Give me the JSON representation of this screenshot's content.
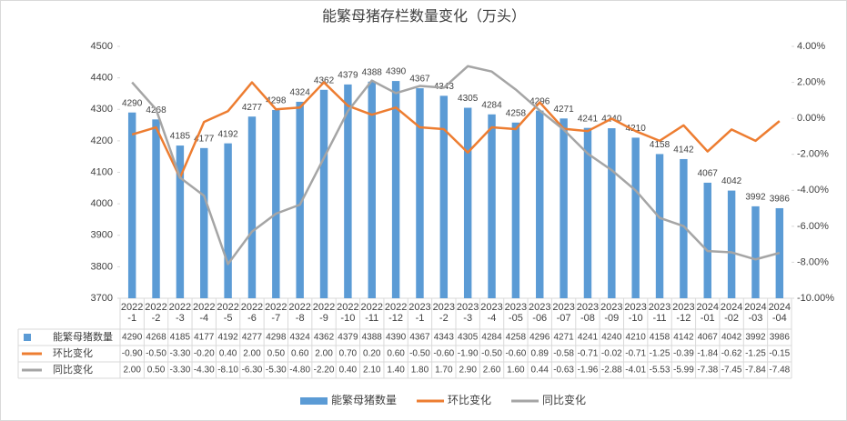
{
  "chart_data": {
    "type": "bar-line",
    "title": "能繁母猪存栏数量变化（万头）",
    "categories": [
      "2022-1",
      "2022-2",
      "2022-3",
      "2022-4",
      "2022-5",
      "2022-6",
      "2022-7",
      "2022-8",
      "2022-9",
      "2022-10",
      "2022-11",
      "2022-12",
      "2023-1",
      "2023-2",
      "2023-3",
      "2023-4",
      "2023-05",
      "2023-06",
      "2023-07",
      "2023-08",
      "2023-09",
      "2023-10",
      "2023-11",
      "2023-12",
      "2024-01",
      "2024-02",
      "2024-03",
      "2024-04"
    ],
    "series": [
      {
        "name": "能繁母猪数量",
        "type": "bar",
        "color": "#5b9bd5",
        "values": [
          4290,
          4268,
          4185,
          4177,
          4192,
          4277,
          4298,
          4324,
          4362,
          4379,
          4388,
          4390,
          4367,
          4343,
          4305,
          4284,
          4258,
          4296,
          4271,
          4241,
          4240,
          4210,
          4158,
          4142,
          4067,
          4042,
          3992,
          3986
        ]
      },
      {
        "name": "环比变化",
        "type": "line",
        "axis": "y2",
        "color": "#ed7d31",
        "values": [
          -0.9,
          -0.5,
          -3.3,
          -0.2,
          0.4,
          2.0,
          0.5,
          0.6,
          2.0,
          0.7,
          0.2,
          0.6,
          -0.5,
          -0.6,
          -1.9,
          -0.5,
          -0.6,
          0.89,
          -0.58,
          -0.71,
          -0.02,
          -0.71,
          -1.25,
          -0.39,
          -1.84,
          -0.62,
          -1.25,
          -0.15
        ],
        "value_labels": [
          "-0.90",
          "-0.50",
          "-3.30",
          "-0.20",
          "0.40",
          "2.00",
          "0.50",
          "0.60",
          "2.00",
          "0.70",
          "0.20",
          "0.60",
          "-0.50",
          "-0.60",
          "-1.90",
          "-0.50",
          "-0.60",
          "0.89",
          "-0.58",
          "-0.71",
          "-0.02",
          "-0.71",
          "-1.25",
          "-0.39",
          "-1.84",
          "-0.62",
          "-1.25",
          "-0.15"
        ]
      },
      {
        "name": "同比变化",
        "type": "line",
        "axis": "y2",
        "color": "#a5a5a5",
        "values": [
          2.0,
          0.5,
          -3.3,
          -4.3,
          -8.1,
          -6.3,
          -5.3,
          -4.8,
          -2.2,
          0.4,
          2.1,
          1.4,
          1.8,
          1.7,
          2.9,
          2.6,
          1.6,
          0.44,
          -0.63,
          -1.96,
          -2.88,
          -4.01,
          -5.53,
          -5.99,
          -7.38,
          -7.45,
          -7.84,
          -7.48
        ],
        "value_labels": [
          "2.00",
          "0.50",
          "-3.30",
          "-4.30",
          "-8.10",
          "-6.30",
          "-5.30",
          "-4.80",
          "-2.20",
          "0.40",
          "2.10",
          "1.40",
          "1.80",
          "1.70",
          "2.90",
          "2.60",
          "1.60",
          "0.44",
          "-0.63",
          "-1.96",
          "-2.88",
          "-4.01",
          "-5.53",
          "-5.99",
          "-7.38",
          "-7.45",
          "-7.84",
          "-7.48"
        ]
      }
    ],
    "ylim": [
      3700,
      4500
    ],
    "yticks": [
      3700,
      3800,
      3900,
      4000,
      4100,
      4200,
      4300,
      4400,
      4500
    ],
    "y2lim": [
      -10,
      4
    ],
    "y2ticks": [
      {
        "value": -10,
        "label": "-10.00%"
      },
      {
        "value": -8,
        "label": "-8.00%"
      },
      {
        "value": -6,
        "label": "-6.00%"
      },
      {
        "value": -4,
        "label": "-4.00%"
      },
      {
        "value": -2,
        "label": "-2.00%"
      },
      {
        "value": 0,
        "label": "0.00%"
      },
      {
        "value": 2,
        "label": "2.00%"
      },
      {
        "value": 4,
        "label": "4.00%"
      }
    ]
  }
}
